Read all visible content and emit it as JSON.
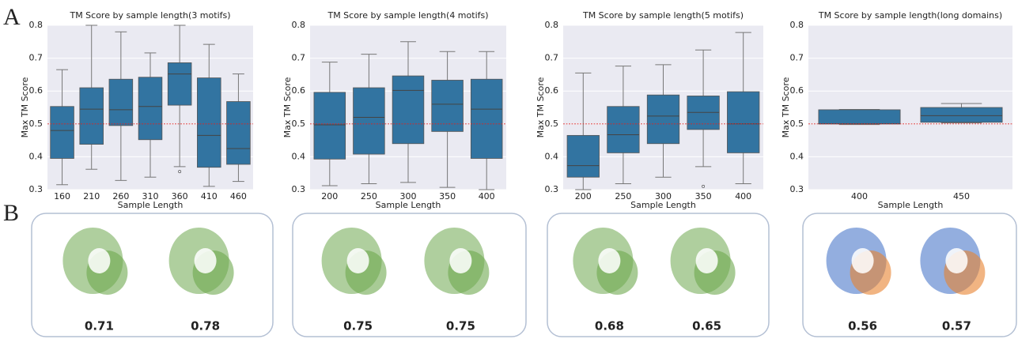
{
  "panel_labels": [
    "A",
    "B"
  ],
  "chart_data": [
    {
      "type": "box",
      "title": "TM Score by sample length(3 motifs)",
      "x_label": "Sample Length",
      "y_label": "Max TM Score",
      "categories": [
        "160",
        "210",
        "260",
        "310",
        "360",
        "410",
        "460"
      ],
      "color": "#3274a1",
      "grid": true,
      "hline": 0.5,
      "hline_color": "#d62728",
      "ylim": [
        0.3,
        0.8
      ],
      "yticks": [
        0.3,
        0.4,
        0.5,
        0.6,
        0.7,
        0.8
      ],
      "boxes": [
        {
          "min": 0.315,
          "q1": 0.395,
          "median": 0.48,
          "q3": 0.553,
          "max": 0.665,
          "outliers": []
        },
        {
          "min": 0.362,
          "q1": 0.438,
          "median": 0.545,
          "q3": 0.61,
          "max": 0.8,
          "outliers": []
        },
        {
          "min": 0.328,
          "q1": 0.495,
          "median": 0.543,
          "q3": 0.636,
          "max": 0.78,
          "outliers": []
        },
        {
          "min": 0.338,
          "q1": 0.452,
          "median": 0.553,
          "q3": 0.642,
          "max": 0.716,
          "outliers": []
        },
        {
          "min": 0.37,
          "q1": 0.557,
          "median": 0.652,
          "q3": 0.686,
          "max": 0.8,
          "outliers": [
            0.355
          ]
        },
        {
          "min": 0.31,
          "q1": 0.368,
          "median": 0.465,
          "q3": 0.64,
          "max": 0.742,
          "outliers": []
        },
        {
          "min": 0.325,
          "q1": 0.377,
          "median": 0.425,
          "q3": 0.568,
          "max": 0.652,
          "outliers": []
        }
      ]
    },
    {
      "type": "box",
      "title": "TM Score by sample length(4 motifs)",
      "x_label": "Sample Length",
      "y_label": "Max TM Score",
      "categories": [
        "200",
        "250",
        "300",
        "350",
        "400"
      ],
      "color": "#3274a1",
      "grid": true,
      "hline": 0.5,
      "hline_color": "#d62728",
      "ylim": [
        0.3,
        0.8
      ],
      "yticks": [
        0.3,
        0.4,
        0.5,
        0.6,
        0.7,
        0.8
      ],
      "boxes": [
        {
          "min": 0.312,
          "q1": 0.393,
          "median": 0.497,
          "q3": 0.596,
          "max": 0.688,
          "outliers": []
        },
        {
          "min": 0.318,
          "q1": 0.408,
          "median": 0.52,
          "q3": 0.61,
          "max": 0.712,
          "outliers": []
        },
        {
          "min": 0.322,
          "q1": 0.44,
          "median": 0.602,
          "q3": 0.646,
          "max": 0.75,
          "outliers": []
        },
        {
          "min": 0.307,
          "q1": 0.477,
          "median": 0.56,
          "q3": 0.633,
          "max": 0.72,
          "outliers": []
        },
        {
          "min": 0.3,
          "q1": 0.395,
          "median": 0.545,
          "q3": 0.636,
          "max": 0.72,
          "outliers": []
        }
      ]
    },
    {
      "type": "box",
      "title": "TM Score by sample length(5 motifs)",
      "x_label": "Sample Length",
      "y_label": "Max TM Score",
      "categories": [
        "200",
        "250",
        "300",
        "350",
        "400"
      ],
      "color": "#3274a1",
      "grid": true,
      "hline": 0.5,
      "hline_color": "#d62728",
      "ylim": [
        0.3,
        0.8
      ],
      "yticks": [
        0.3,
        0.4,
        0.5,
        0.6,
        0.7,
        0.8
      ],
      "boxes": [
        {
          "min": 0.3,
          "q1": 0.338,
          "median": 0.373,
          "q3": 0.465,
          "max": 0.655,
          "outliers": []
        },
        {
          "min": 0.318,
          "q1": 0.412,
          "median": 0.467,
          "q3": 0.553,
          "max": 0.676,
          "outliers": []
        },
        {
          "min": 0.338,
          "q1": 0.44,
          "median": 0.524,
          "q3": 0.588,
          "max": 0.68,
          "outliers": []
        },
        {
          "min": 0.37,
          "q1": 0.483,
          "median": 0.535,
          "q3": 0.585,
          "max": 0.725,
          "outliers": [
            0.31
          ]
        },
        {
          "min": 0.318,
          "q1": 0.412,
          "median": 0.5,
          "q3": 0.598,
          "max": 0.778,
          "outliers": []
        }
      ]
    },
    {
      "type": "box",
      "title": "TM Score by sample length(long domains)",
      "x_label": "Sample Length",
      "y_label": "Max TM Score",
      "categories": [
        "400",
        "450"
      ],
      "color": "#3274a1",
      "grid": true,
      "hline": 0.5,
      "hline_color": "#d62728",
      "ylim": [
        0.3,
        0.8
      ],
      "yticks": [
        0.3,
        0.4,
        0.5,
        0.6,
        0.7,
        0.8
      ],
      "boxes": [
        {
          "min": 0.498,
          "q1": 0.5,
          "median": 0.5,
          "q3": 0.543,
          "max": 0.544,
          "outliers": []
        },
        {
          "min": 0.503,
          "q1": 0.505,
          "median": 0.525,
          "q3": 0.55,
          "max": 0.562,
          "outliers": []
        }
      ]
    }
  ],
  "structures": [
    {
      "scores": [
        0.71,
        0.78
      ]
    },
    {
      "scores": [
        0.75,
        0.75
      ]
    },
    {
      "scores": [
        0.68,
        0.65
      ]
    },
    {
      "scores": [
        0.56,
        0.57
      ]
    }
  ]
}
